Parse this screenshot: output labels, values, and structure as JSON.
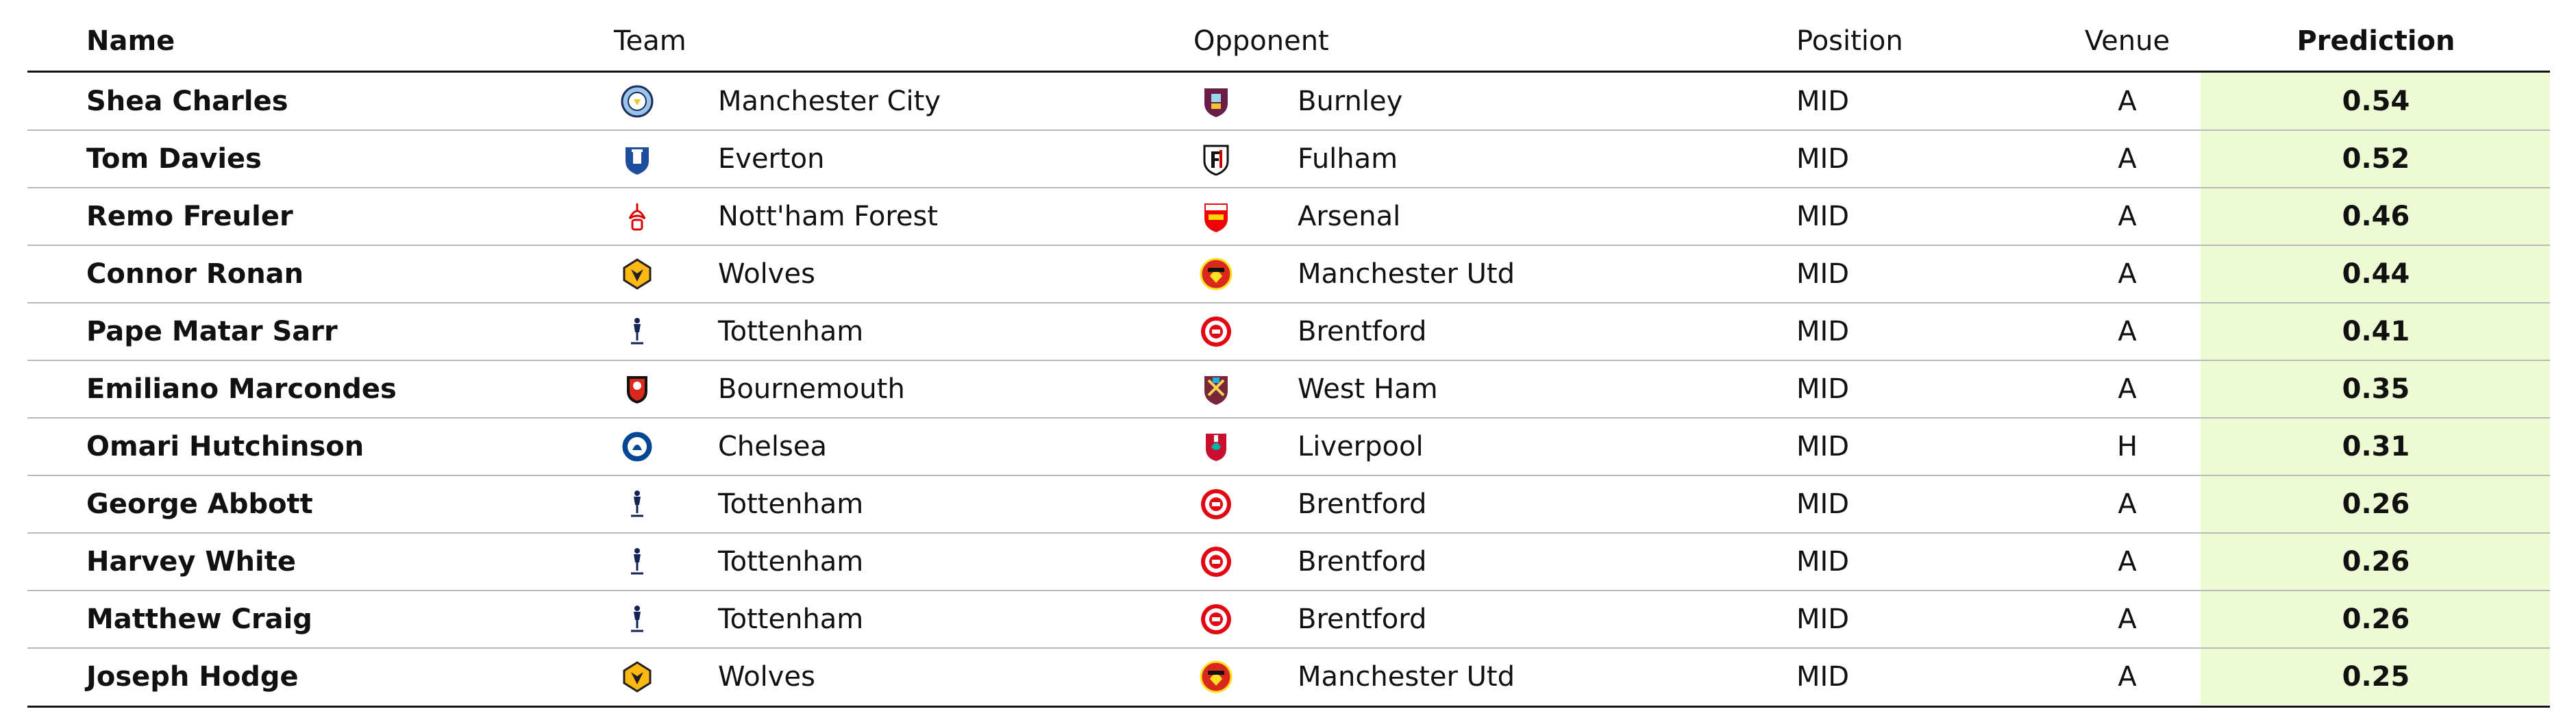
{
  "table": {
    "columns": {
      "name": "Name",
      "team": "Team",
      "opponent": "Opponent",
      "position": "Position",
      "venue": "Venue",
      "prediction": "Prediction"
    },
    "colors": {
      "prediction_column_bg": "#eefad4",
      "rule_major": "#111111",
      "rule_minor": "#b8b8b8"
    },
    "rows": [
      {
        "name": "Shea Charles",
        "team": "Manchester City",
        "team_icon": "manchester-city-crest-icon",
        "opponent": "Burnley",
        "opponent_icon": "burnley-crest-icon",
        "position": "MID",
        "venue": "A",
        "prediction": "0.54"
      },
      {
        "name": "Tom Davies",
        "team": "Everton",
        "team_icon": "everton-crest-icon",
        "opponent": "Fulham",
        "opponent_icon": "fulham-crest-icon",
        "position": "MID",
        "venue": "A",
        "prediction": "0.52"
      },
      {
        "name": "Remo Freuler",
        "team": "Nott'ham Forest",
        "team_icon": "nottingham-forest-crest-icon",
        "opponent": "Arsenal",
        "opponent_icon": "arsenal-crest-icon",
        "position": "MID",
        "venue": "A",
        "prediction": "0.46"
      },
      {
        "name": "Connor Ronan",
        "team": "Wolves",
        "team_icon": "wolves-crest-icon",
        "opponent": "Manchester Utd",
        "opponent_icon": "manchester-utd-crest-icon",
        "position": "MID",
        "venue": "A",
        "prediction": "0.44"
      },
      {
        "name": "Pape Matar Sarr",
        "team": "Tottenham",
        "team_icon": "tottenham-crest-icon",
        "opponent": "Brentford",
        "opponent_icon": "brentford-crest-icon",
        "position": "MID",
        "venue": "A",
        "prediction": "0.41"
      },
      {
        "name": "Emiliano Marcondes",
        "team": "Bournemouth",
        "team_icon": "bournemouth-crest-icon",
        "opponent": "West Ham",
        "opponent_icon": "west-ham-crest-icon",
        "position": "MID",
        "venue": "A",
        "prediction": "0.35"
      },
      {
        "name": "Omari Hutchinson",
        "team": "Chelsea",
        "team_icon": "chelsea-crest-icon",
        "opponent": "Liverpool",
        "opponent_icon": "liverpool-crest-icon",
        "position": "MID",
        "venue": "H",
        "prediction": "0.31"
      },
      {
        "name": "George Abbott",
        "team": "Tottenham",
        "team_icon": "tottenham-crest-icon",
        "opponent": "Brentford",
        "opponent_icon": "brentford-crest-icon",
        "position": "MID",
        "venue": "A",
        "prediction": "0.26"
      },
      {
        "name": "Harvey White",
        "team": "Tottenham",
        "team_icon": "tottenham-crest-icon",
        "opponent": "Brentford",
        "opponent_icon": "brentford-crest-icon",
        "position": "MID",
        "venue": "A",
        "prediction": "0.26"
      },
      {
        "name": "Matthew Craig",
        "team": "Tottenham",
        "team_icon": "tottenham-crest-icon",
        "opponent": "Brentford",
        "opponent_icon": "brentford-crest-icon",
        "position": "MID",
        "venue": "A",
        "prediction": "0.26"
      },
      {
        "name": "Joseph Hodge",
        "team": "Wolves",
        "team_icon": "wolves-crest-icon",
        "opponent": "Manchester Utd",
        "opponent_icon": "manchester-utd-crest-icon",
        "position": "MID",
        "venue": "A",
        "prediction": "0.25"
      }
    ]
  },
  "chart_data": {
    "type": "table",
    "columns": [
      "Name",
      "Team",
      "Opponent",
      "Position",
      "Venue",
      "Prediction"
    ],
    "rows": [
      [
        "Shea Charles",
        "Manchester City",
        "Burnley",
        "MID",
        "A",
        0.54
      ],
      [
        "Tom Davies",
        "Everton",
        "Fulham",
        "MID",
        "A",
        0.52
      ],
      [
        "Remo Freuler",
        "Nott'ham Forest",
        "Arsenal",
        "MID",
        "A",
        0.46
      ],
      [
        "Connor Ronan",
        "Wolves",
        "Manchester Utd",
        "MID",
        "A",
        0.44
      ],
      [
        "Pape Matar Sarr",
        "Tottenham",
        "Brentford",
        "MID",
        "A",
        0.41
      ],
      [
        "Emiliano Marcondes",
        "Bournemouth",
        "West Ham",
        "MID",
        "A",
        0.35
      ],
      [
        "Omari Hutchinson",
        "Chelsea",
        "Liverpool",
        "MID",
        "H",
        0.31
      ],
      [
        "George Abbott",
        "Tottenham",
        "Brentford",
        "MID",
        "A",
        0.26
      ],
      [
        "Harvey White",
        "Tottenham",
        "Brentford",
        "MID",
        "A",
        0.26
      ],
      [
        "Matthew Craig",
        "Tottenham",
        "Brentford",
        "MID",
        "A",
        0.26
      ],
      [
        "Joseph Hodge",
        "Wolves",
        "Manchester Utd",
        "MID",
        "A",
        0.25
      ]
    ]
  }
}
